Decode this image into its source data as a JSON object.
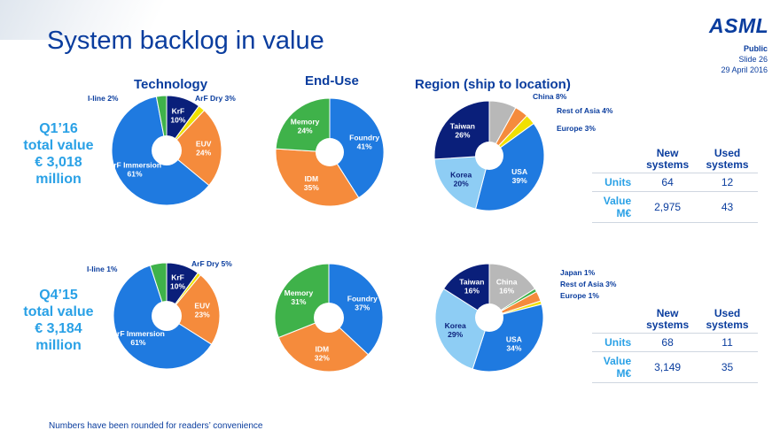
{
  "header": {
    "title": "System backlog in value",
    "logo": "ASML",
    "public": "Public",
    "slide": "Slide 26",
    "date": "29 April 2016"
  },
  "sections": {
    "technology": "Technology",
    "end_use": "End-Use",
    "region": "Region (ship to location)"
  },
  "periods": [
    {
      "line1": "Q1’16",
      "line2": "total value",
      "line3": "€ 3,018",
      "line4": "million"
    },
    {
      "line1": "Q4’15",
      "line2": "total value",
      "line3": "€ 3,184",
      "line4": "million"
    }
  ],
  "tables": [
    {
      "headers": [
        "New systems",
        "Used systems"
      ],
      "units_label": "Units",
      "value_label": "Value M€",
      "units": [
        "64",
        "12"
      ],
      "value": [
        "2,975",
        "43"
      ]
    },
    {
      "headers": [
        "New systems",
        "Used systems"
      ],
      "units_label": "Units",
      "value_label": "Value M€",
      "units": [
        "68",
        "11"
      ],
      "value": [
        "3,149",
        "35"
      ]
    }
  ],
  "footnote": "Numbers have been rounded for readers’ convenience",
  "chart_data": [
    {
      "type": "pie",
      "title": "Technology",
      "period": "Q1’16",
      "slices": [
        {
          "name": "KrF",
          "value": 10,
          "label": "10%",
          "color": "#0a1f7a",
          "text": "inside"
        },
        {
          "name": "I-line",
          "value": 2,
          "label": "2%",
          "color": "#f0e000",
          "text": "outside"
        },
        {
          "name": "EUV",
          "value": 24,
          "label": "24%",
          "color": "#f58b3c",
          "text": "inside"
        },
        {
          "name": "ArF Immersion",
          "value": 61,
          "label": "61%",
          "color": "#1f7ae0",
          "text": "inside"
        },
        {
          "name": "ArF Dry",
          "value": 3,
          "label": "3%",
          "color": "#3fb24a",
          "text": "outside"
        }
      ]
    },
    {
      "type": "pie",
      "title": "End-Use",
      "period": "Q1’16",
      "slices": [
        {
          "name": "Foundry",
          "value": 41,
          "label": "41%",
          "color": "#1f7ae0",
          "text": "inside"
        },
        {
          "name": "IDM",
          "value": 35,
          "label": "35%",
          "color": "#f58b3c",
          "text": "inside"
        },
        {
          "name": "Memory",
          "value": 24,
          "label": "24%",
          "color": "#3fb24a",
          "text": "inside"
        }
      ]
    },
    {
      "type": "pie",
      "title": "Region (ship to location)",
      "period": "Q1’16",
      "slices": [
        {
          "name": "China",
          "value": 8,
          "label": "8%",
          "color": "#b8b8b8",
          "text": "outside"
        },
        {
          "name": "Rest of Asia",
          "value": 4,
          "label": "4%",
          "color": "#f58b3c",
          "text": "outside"
        },
        {
          "name": "Europe",
          "value": 3,
          "label": "3%",
          "color": "#f0e000",
          "text": "outside"
        },
        {
          "name": "USA",
          "value": 39,
          "label": "39%",
          "color": "#1f7ae0",
          "text": "inside"
        },
        {
          "name": "Korea",
          "value": 20,
          "label": "20%",
          "color": "#8ecdf4",
          "text": "inside"
        },
        {
          "name": "Taiwan",
          "value": 26,
          "label": "26%",
          "color": "#0a1f7a",
          "text": "inside"
        }
      ]
    },
    {
      "type": "pie",
      "title": "Technology",
      "period": "Q4’15",
      "slices": [
        {
          "name": "KrF",
          "value": 10,
          "label": "10%",
          "color": "#0a1f7a",
          "text": "inside"
        },
        {
          "name": "I-line",
          "value": 1,
          "label": "1%",
          "color": "#f0e000",
          "text": "outside"
        },
        {
          "name": "EUV",
          "value": 23,
          "label": "23%",
          "color": "#f58b3c",
          "text": "inside"
        },
        {
          "name": "ArF Immersion",
          "value": 61,
          "label": "61%",
          "color": "#1f7ae0",
          "text": "inside"
        },
        {
          "name": "ArF Dry",
          "value": 5,
          "label": "5%",
          "color": "#3fb24a",
          "text": "outside"
        }
      ]
    },
    {
      "type": "pie",
      "title": "End-Use",
      "period": "Q4’15",
      "slices": [
        {
          "name": "Foundry",
          "value": 37,
          "label": "37%",
          "color": "#1f7ae0",
          "text": "inside"
        },
        {
          "name": "IDM",
          "value": 32,
          "label": "32%",
          "color": "#f58b3c",
          "text": "inside"
        },
        {
          "name": "Memory",
          "value": 31,
          "label": "31%",
          "color": "#3fb24a",
          "text": "inside"
        }
      ]
    },
    {
      "type": "pie",
      "title": "Region (ship to location)",
      "period": "Q4’15",
      "slices": [
        {
          "name": "China",
          "value": 16,
          "label": "16%",
          "color": "#b8b8b8",
          "text": "inside"
        },
        {
          "name": "Japan",
          "value": 1,
          "label": "1%",
          "color": "#3fb24a",
          "text": "outside"
        },
        {
          "name": "Rest of Asia",
          "value": 3,
          "label": "3%",
          "color": "#f58b3c",
          "text": "outside"
        },
        {
          "name": "Europe",
          "value": 1,
          "label": "1%",
          "color": "#f0e000",
          "text": "outside"
        },
        {
          "name": "USA",
          "value": 34,
          "label": "34%",
          "color": "#1f7ae0",
          "text": "inside"
        },
        {
          "name": "Korea",
          "value": 29,
          "label": "29%",
          "color": "#8ecdf4",
          "text": "inside"
        },
        {
          "name": "Taiwan",
          "value": 16,
          "label": "16%",
          "color": "#0a1f7a",
          "text": "inside"
        }
      ]
    }
  ]
}
